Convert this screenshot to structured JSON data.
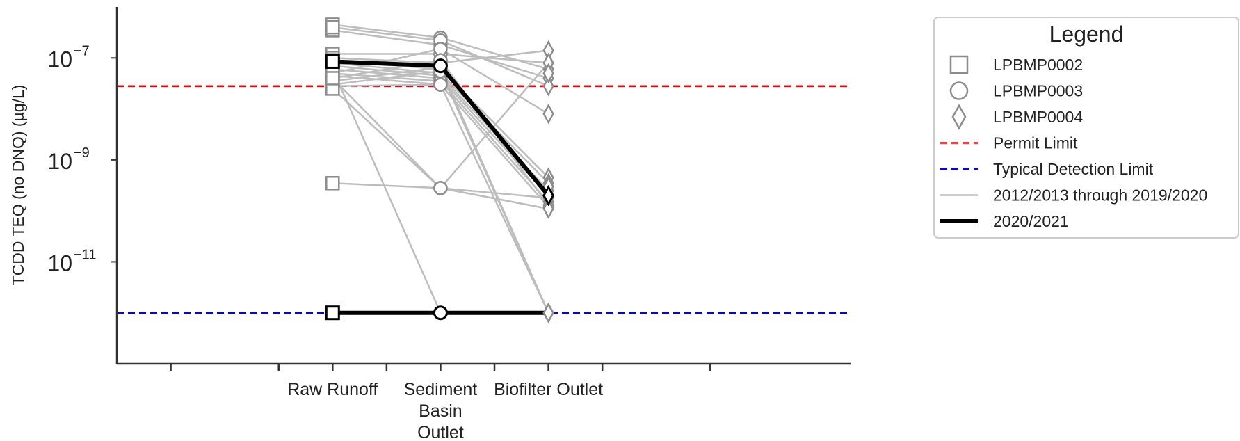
{
  "chart_data": {
    "type": "line",
    "title": "",
    "xlabel": "",
    "ylabel": "TCDD TEQ (no DNQ) (µg/L)",
    "yscale": "log",
    "ylim": [
      1e-13,
      1e-06
    ],
    "xlim": [
      -2.0,
      4.8
    ],
    "categories": [
      "Raw Runoff",
      "Sediment Basin Outlet",
      "Biofilter Outlet"
    ],
    "category_labels": [
      [
        "Raw Runoff"
      ],
      [
        "Sediment",
        "Basin",
        "Outlet"
      ],
      [
        "Biofilter Outlet"
      ]
    ],
    "yticks": [
      {
        "base": "10",
        "exp": "−7",
        "value": 1e-07
      },
      {
        "base": "10",
        "exp": "−9",
        "value": 1e-09
      },
      {
        "base": "10",
        "exp": "−11",
        "value": 1e-11
      }
    ],
    "minor_xtick_positions": [
      -1.5,
      -0.5,
      0.5,
      1.5,
      2.5,
      3.5
    ],
    "markers": [
      "square",
      "circle",
      "diamond"
    ],
    "reference_lines": [
      {
        "name": "Permit Limit",
        "value": 2.8e-08,
        "color": "#ff0000",
        "style": "dashed"
      },
      {
        "name": "Typical Detection Limit",
        "value": 1e-12,
        "color": "#0000ff",
        "style": "dashed"
      }
    ],
    "historical_series": {
      "name": "2012/2013 through 2019/2020",
      "color": "#bdbdbd",
      "lines": [
        [
          4.5e-07,
          2.5e-07,
          6e-08
        ],
        [
          3.5e-07,
          1.8e-07,
          4e-08
        ],
        [
          4e-07,
          2.2e-07,
          2.8e-08
        ],
        [
          1.2e-07,
          1.2e-07,
          8e-08
        ],
        [
          1e-07,
          8e-08,
          1.4e-07
        ],
        [
          9e-08,
          6e-08,
          4.5e-10
        ],
        [
          8e-08,
          5e-08,
          3.5e-10
        ],
        [
          7e-08,
          4.5e-08,
          2.5e-10
        ],
        [
          6e-08,
          4e-08,
          2e-10
        ],
        [
          5e-08,
          3.5e-08,
          1.5e-10
        ],
        [
          4.5e-08,
          3e-08,
          1.2e-10
        ],
        [
          4e-08,
          9e-08,
          1.3e-10
        ],
        [
          3.5e-08,
          6.5e-08,
          1e-12
        ],
        [
          3e-08,
          5.5e-08,
          1e-12
        ],
        [
          2.8e-08,
          3e-08,
          1e-12
        ],
        [
          2.5e-08,
          2.8e-10,
          1.8e-10
        ],
        [
          6e-08,
          1e-12,
          1e-12
        ],
        [
          3.5e-10,
          2.8e-10,
          1.1e-10
        ],
        [
          5e-08,
          1.5e-07,
          8e-09
        ],
        [
          4e-08,
          2.8e-10,
          8e-08
        ]
      ],
      "extra_points": [
        {
          "x": 2,
          "y": 5e-08
        },
        {
          "x": 2,
          "y": 3e-10
        },
        {
          "x": 1,
          "y": 9e-08
        },
        {
          "x": 0,
          "y": 1e-12
        }
      ]
    },
    "highlight_series": {
      "name": "2020/2021",
      "color": "#000000",
      "lines": [
        [
          8.5e-08,
          7e-08,
          2e-10
        ],
        [
          1e-12,
          1e-12,
          1e-12
        ]
      ]
    },
    "legend": {
      "title": "Legend",
      "placement": "outside-right",
      "items": [
        {
          "label": "LPBMP0002",
          "kind": "square"
        },
        {
          "label": "LPBMP0003",
          "kind": "circle"
        },
        {
          "label": "LPBMP0004",
          "kind": "diamond"
        },
        {
          "label": "Permit Limit",
          "kind": "red-dash"
        },
        {
          "label": "Typical Detection Limit",
          "kind": "blue-dash"
        },
        {
          "label": "2012/2013 through 2019/2020",
          "kind": "gray-line"
        },
        {
          "label": "2020/2021",
          "kind": "black-line"
        }
      ]
    }
  }
}
